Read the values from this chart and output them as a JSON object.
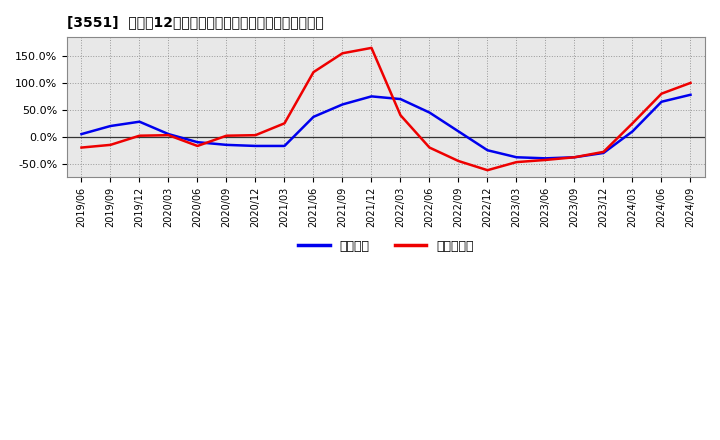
{
  "title": "[3551]  利益の12か月移動合計の対前年同期増減率の推移",
  "x_labels": [
    "2019/06",
    "2019/09",
    "2019/12",
    "2020/03",
    "2020/06",
    "2020/09",
    "2020/12",
    "2021/03",
    "2021/06",
    "2021/09",
    "2021/12",
    "2022/03",
    "2022/06",
    "2022/09",
    "2022/12",
    "2023/03",
    "2023/06",
    "2023/09",
    "2023/12",
    "2024/03",
    "2024/06",
    "2024/09"
  ],
  "blue_data": {
    "label": "経常利益",
    "y": [
      5.0,
      20.0,
      28.0,
      5.0,
      -10.0,
      -15.0,
      -17.0,
      -17.0,
      37.0,
      60.0,
      75.0,
      70.0,
      45.0,
      10.0,
      -25.0,
      -38.0,
      -40.0,
      -38.0,
      -30.0,
      10.0,
      65.0,
      78.0
    ],
    "color": "#0000ee"
  },
  "red_data": {
    "label": "当期純利益",
    "y": [
      -20.0,
      -15.0,
      2.0,
      3.0,
      -17.0,
      2.0,
      3.0,
      25.0,
      120.0,
      155.0,
      165.0,
      40.0,
      -20.0,
      -45.0,
      -62.0,
      -47.0,
      -43.0,
      -38.0,
      -28.0,
      25.0,
      80.0,
      100.0
    ],
    "color": "#ee0000"
  },
  "yticks": [
    -50.0,
    0.0,
    50.0,
    100.0,
    150.0
  ],
  "ylim": [
    -75.0,
    185.0
  ],
  "background_color": "#ffffff",
  "plot_background": "#e8e8e8",
  "grid_color": "#999999",
  "legend_labels": [
    "経常利益",
    "当期純利益"
  ],
  "legend_colors": [
    "#0000ee",
    "#ee0000"
  ]
}
